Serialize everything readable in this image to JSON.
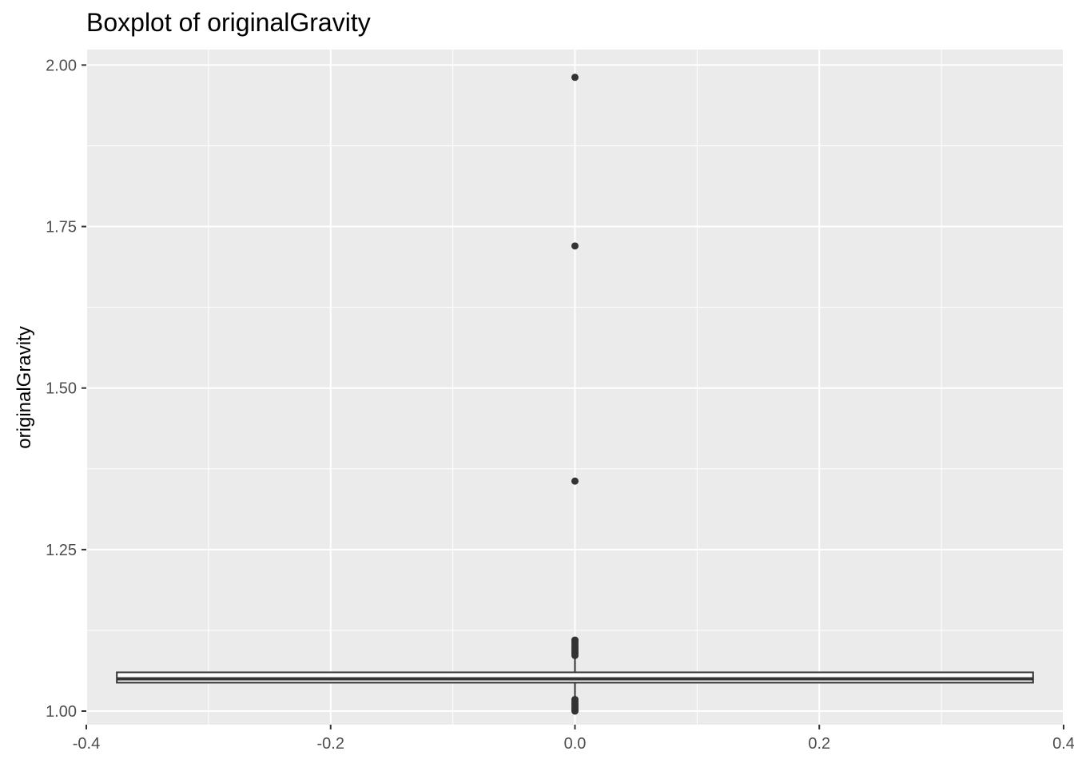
{
  "chart_data": {
    "type": "boxplot",
    "title": "Boxplot of originalGravity",
    "xlabel": "",
    "ylabel": "originalGravity",
    "xlim": [
      -0.4,
      0.4
    ],
    "ylim": [
      0.979,
      2.024
    ],
    "x_ticks": [
      -0.4,
      -0.2,
      0.0,
      0.2,
      0.4
    ],
    "x_tick_labels": [
      "-0.4",
      "-0.2",
      "0.0",
      "0.2",
      "0.4"
    ],
    "y_ticks": [
      1.0,
      1.25,
      1.5,
      1.75,
      2.0
    ],
    "y_tick_labels": [
      "1.00",
      "1.25",
      "1.50",
      "1.75",
      "2.00"
    ],
    "grid": true,
    "box": {
      "x": 0.0,
      "half_width": 0.375,
      "q1": 1.044,
      "median": 1.05,
      "q3": 1.06,
      "whisker_low": 1.021,
      "whisker_high": 1.083
    },
    "outliers": [
      1.981,
      1.72,
      1.356,
      1.11,
      1.107,
      1.104,
      1.101,
      1.098,
      1.095,
      1.092,
      1.089,
      1.086,
      1.018,
      1.015,
      1.012,
      1.009,
      1.006,
      1.003,
      1.0
    ],
    "colors": {
      "panel_bg": "#ebebeb",
      "grid_major": "#ffffff",
      "box_fill": "#ffffff",
      "box_line": "#333333",
      "outlier": "#333333",
      "tick_text": "#4d4d4d"
    }
  }
}
